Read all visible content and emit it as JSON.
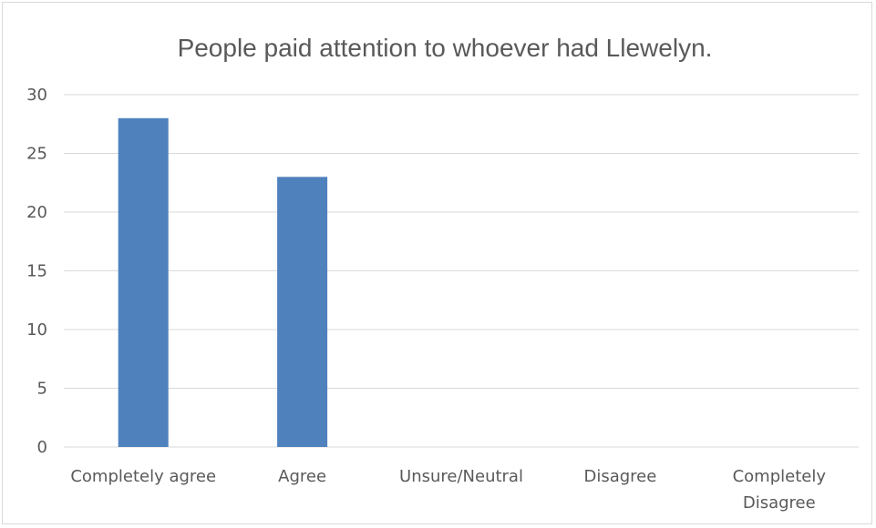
{
  "chart_data": {
    "type": "bar",
    "title": "People paid attention to whoever had Llewelyn.",
    "categories": [
      "Completely agree",
      "Agree",
      "Unsure/Neutral",
      "Disagree",
      "Completely Disagree"
    ],
    "category_lines": [
      [
        "Completely agree"
      ],
      [
        "Agree"
      ],
      [
        "Unsure/Neutral"
      ],
      [
        "Disagree"
      ],
      [
        "Completely",
        "Disagree"
      ]
    ],
    "values": [
      28,
      23,
      0,
      0,
      0
    ],
    "ylim": [
      0,
      30
    ],
    "yticks": [
      "0",
      "5",
      "10",
      "15",
      "20",
      "25",
      "30"
    ],
    "grid": true,
    "legend": "none",
    "bar_color": "#4f81bd",
    "grid_color": "#d9d9d9",
    "text_color": "#595959"
  }
}
